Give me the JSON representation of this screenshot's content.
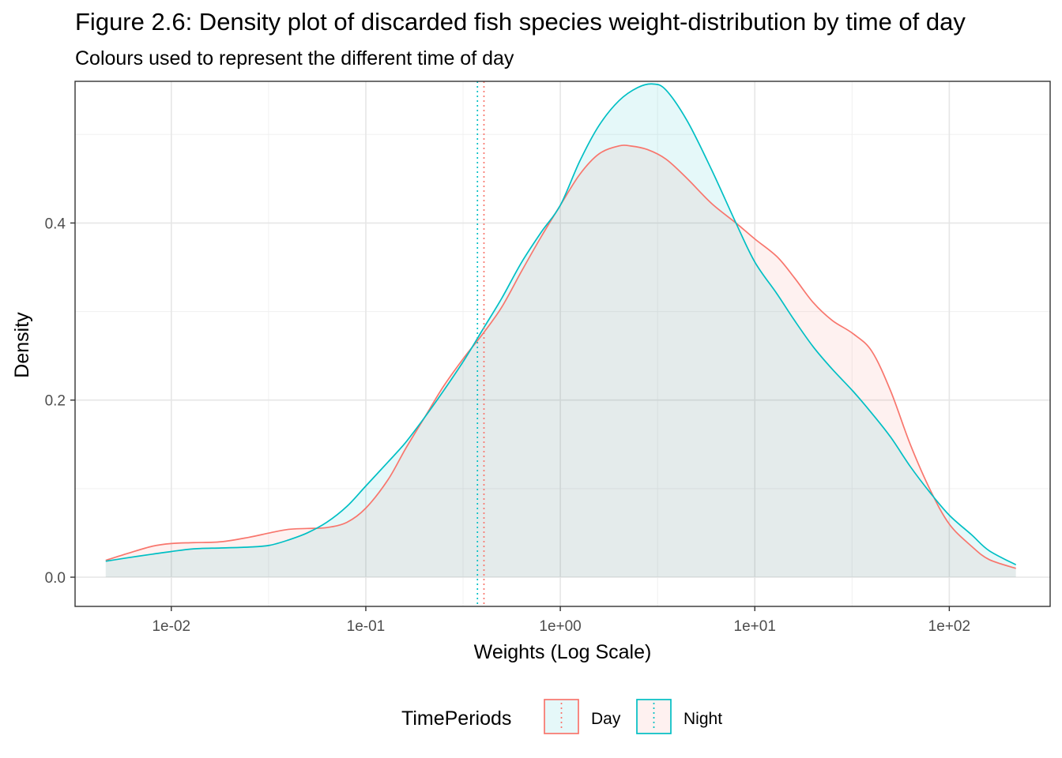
{
  "chart_data": {
    "type": "area",
    "title": "Figure 2.6: Density plot of discarded fish species weight-distribution by time of day",
    "subtitle": "Colours used to represent the different time of day",
    "xlabel": "Weights (Log Scale)",
    "ylabel": "Density",
    "x_scale": "log10",
    "xlim": [
      0.0032,
      330
    ],
    "ylim": [
      -0.033,
      0.56
    ],
    "x_ticks": [
      0.01,
      0.1,
      1,
      10,
      100
    ],
    "x_tick_labels": [
      "1e-02",
      "1e-01",
      "1e+00",
      "1e+01",
      "1e+02"
    ],
    "y_ticks": [
      0.0,
      0.2,
      0.4
    ],
    "y_tick_labels": [
      "0.0",
      "0.2",
      "0.4"
    ],
    "grid": true,
    "legend": {
      "title": "TimePeriods",
      "position": "bottom"
    },
    "series": [
      {
        "name": "Day",
        "color": "#F8766D",
        "fill": "#F8766D",
        "mean_line_x": 0.405,
        "points": [
          [
            0.0046,
            0.019
          ],
          [
            0.006,
            0.027
          ],
          [
            0.008,
            0.035
          ],
          [
            0.01,
            0.038
          ],
          [
            0.013,
            0.039
          ],
          [
            0.018,
            0.04
          ],
          [
            0.025,
            0.045
          ],
          [
            0.032,
            0.05
          ],
          [
            0.04,
            0.054
          ],
          [
            0.05,
            0.055
          ],
          [
            0.063,
            0.056
          ],
          [
            0.08,
            0.062
          ],
          [
            0.1,
            0.078
          ],
          [
            0.13,
            0.11
          ],
          [
            0.16,
            0.145
          ],
          [
            0.2,
            0.18
          ],
          [
            0.25,
            0.215
          ],
          [
            0.32,
            0.248
          ],
          [
            0.4,
            0.275
          ],
          [
            0.5,
            0.305
          ],
          [
            0.63,
            0.345
          ],
          [
            0.8,
            0.385
          ],
          [
            1.0,
            0.42
          ],
          [
            1.26,
            0.455
          ],
          [
            1.58,
            0.478
          ],
          [
            2.0,
            0.487
          ],
          [
            2.3,
            0.487
          ],
          [
            2.8,
            0.483
          ],
          [
            3.5,
            0.472
          ],
          [
            4.5,
            0.45
          ],
          [
            6.0,
            0.422
          ],
          [
            8.0,
            0.4
          ],
          [
            10.0,
            0.382
          ],
          [
            13.0,
            0.362
          ],
          [
            16.0,
            0.338
          ],
          [
            20.0,
            0.31
          ],
          [
            25.0,
            0.29
          ],
          [
            32.0,
            0.275
          ],
          [
            40.0,
            0.255
          ],
          [
            50.0,
            0.21
          ],
          [
            63.0,
            0.15
          ],
          [
            80.0,
            0.098
          ],
          [
            100.0,
            0.06
          ],
          [
            130.0,
            0.035
          ],
          [
            160.0,
            0.02
          ],
          [
            220.0,
            0.01
          ]
        ]
      },
      {
        "name": "Night",
        "color": "#00BFC4",
        "fill": "#00BFC4",
        "mean_line_x": 0.375,
        "points": [
          [
            0.0046,
            0.018
          ],
          [
            0.006,
            0.022
          ],
          [
            0.008,
            0.026
          ],
          [
            0.01,
            0.029
          ],
          [
            0.013,
            0.032
          ],
          [
            0.018,
            0.033
          ],
          [
            0.025,
            0.034
          ],
          [
            0.032,
            0.036
          ],
          [
            0.04,
            0.042
          ],
          [
            0.05,
            0.05
          ],
          [
            0.063,
            0.062
          ],
          [
            0.08,
            0.08
          ],
          [
            0.1,
            0.103
          ],
          [
            0.13,
            0.13
          ],
          [
            0.16,
            0.152
          ],
          [
            0.2,
            0.18
          ],
          [
            0.25,
            0.21
          ],
          [
            0.32,
            0.245
          ],
          [
            0.4,
            0.28
          ],
          [
            0.5,
            0.315
          ],
          [
            0.63,
            0.355
          ],
          [
            0.8,
            0.39
          ],
          [
            1.0,
            0.42
          ],
          [
            1.26,
            0.47
          ],
          [
            1.58,
            0.51
          ],
          [
            2.0,
            0.538
          ],
          [
            2.5,
            0.553
          ],
          [
            3.0,
            0.557
          ],
          [
            3.5,
            0.55
          ],
          [
            4.5,
            0.515
          ],
          [
            6.0,
            0.46
          ],
          [
            8.0,
            0.4
          ],
          [
            10.0,
            0.356
          ],
          [
            13.0,
            0.32
          ],
          [
            16.0,
            0.29
          ],
          [
            20.0,
            0.26
          ],
          [
            25.0,
            0.235
          ],
          [
            32.0,
            0.21
          ],
          [
            40.0,
            0.185
          ],
          [
            50.0,
            0.158
          ],
          [
            63.0,
            0.125
          ],
          [
            80.0,
            0.095
          ],
          [
            100.0,
            0.07
          ],
          [
            130.0,
            0.048
          ],
          [
            160.0,
            0.03
          ],
          [
            220.0,
            0.014
          ]
        ]
      }
    ]
  }
}
